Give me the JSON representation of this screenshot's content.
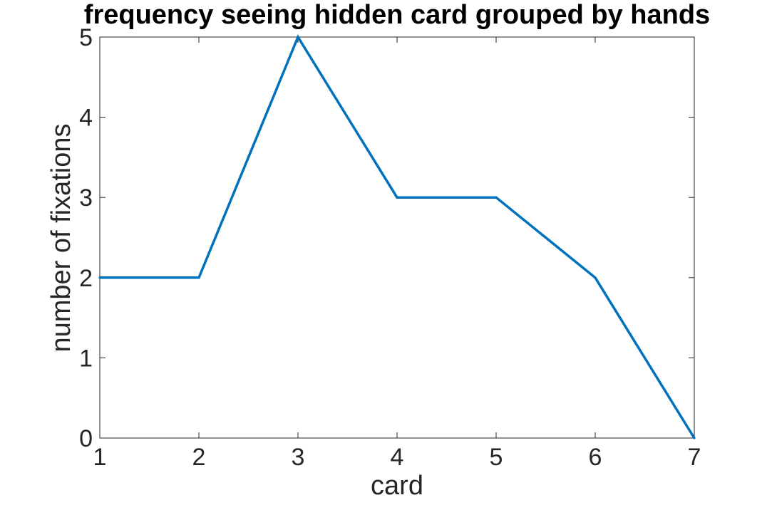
{
  "chart_data": {
    "type": "line",
    "title": "frequency seeing hidden card grouped by hands",
    "xlabel": "card",
    "ylabel": "number of fixations",
    "x": [
      1,
      2,
      3,
      4,
      5,
      6,
      7
    ],
    "series": [
      {
        "name": "fixations",
        "values": [
          2,
          2,
          5,
          3,
          3,
          2,
          0
        ],
        "color": "#0072BD"
      }
    ],
    "xlim": [
      1,
      7
    ],
    "ylim": [
      0,
      5
    ],
    "xticks": [
      1,
      2,
      3,
      4,
      5,
      6,
      7
    ],
    "yticks": [
      0,
      1,
      2,
      3,
      4,
      5
    ],
    "xtick_labels": [
      "1",
      "2",
      "3",
      "4",
      "5",
      "6",
      "7"
    ],
    "ytick_labels": [
      "0",
      "1",
      "2",
      "3",
      "4",
      "5"
    ],
    "grid": false,
    "legend": "none"
  }
}
